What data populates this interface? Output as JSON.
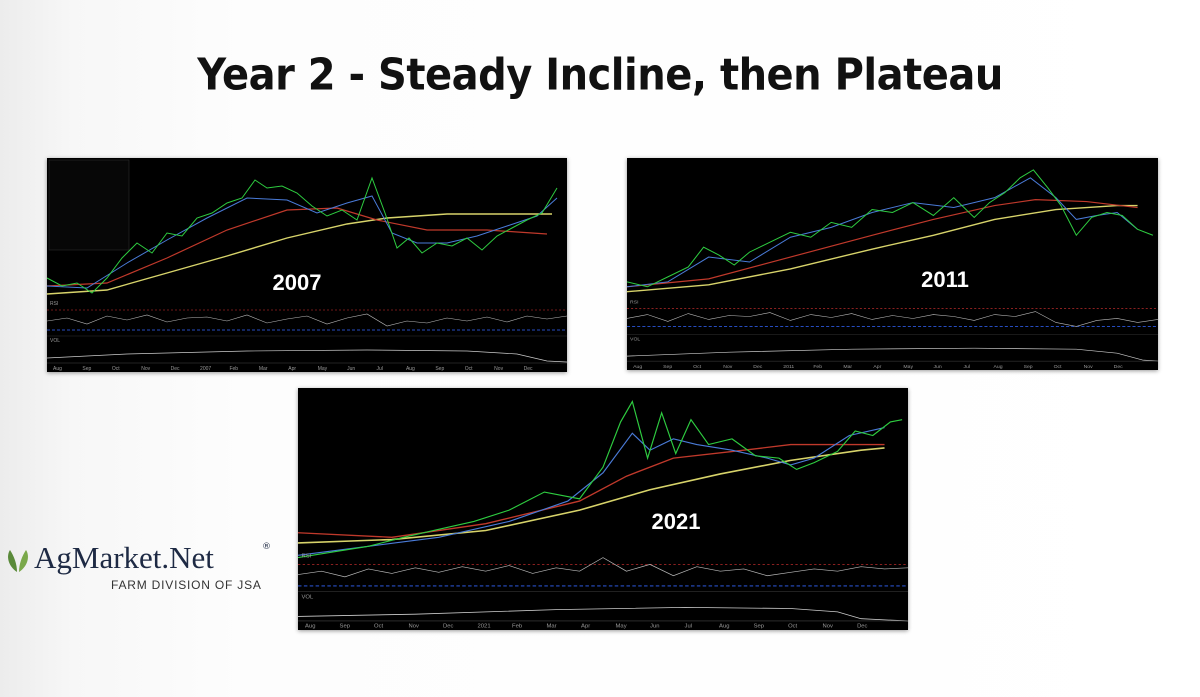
{
  "slide": {
    "title": "Year 2 - Steady Incline, then Plateau",
    "panels": [
      {
        "year": "2007",
        "rsi": "RSI",
        "vol": "VOL",
        "months": [
          "Aug",
          "Sep",
          "Oct",
          "Nov",
          "Dec",
          "2007",
          "Feb",
          "Mar",
          "Apr",
          "May",
          "Jun",
          "Jul",
          "Aug",
          "Sep",
          "Oct",
          "Nov",
          "Dec"
        ]
      },
      {
        "year": "2011",
        "rsi": "RSI",
        "vol": "VOL",
        "months": [
          "Aug",
          "Sep",
          "Oct",
          "Nov",
          "Dec",
          "2011",
          "Feb",
          "Mar",
          "Apr",
          "May",
          "Jun",
          "Jul",
          "Aug",
          "Sep",
          "Oct",
          "Nov",
          "Dec"
        ]
      },
      {
        "year": "2021",
        "rsi": "RSI",
        "vol": "VOL",
        "months": [
          "Aug",
          "Sep",
          "Oct",
          "Nov",
          "Dec",
          "2021",
          "Feb",
          "Mar",
          "Apr",
          "May",
          "Jun",
          "Jul",
          "Aug",
          "Sep",
          "Oct",
          "Nov",
          "Dec"
        ]
      }
    ],
    "logo": {
      "name": "AgMarket.Net",
      "mark": "®",
      "tagline": "FARM DIVISION OF JSA"
    }
  }
}
